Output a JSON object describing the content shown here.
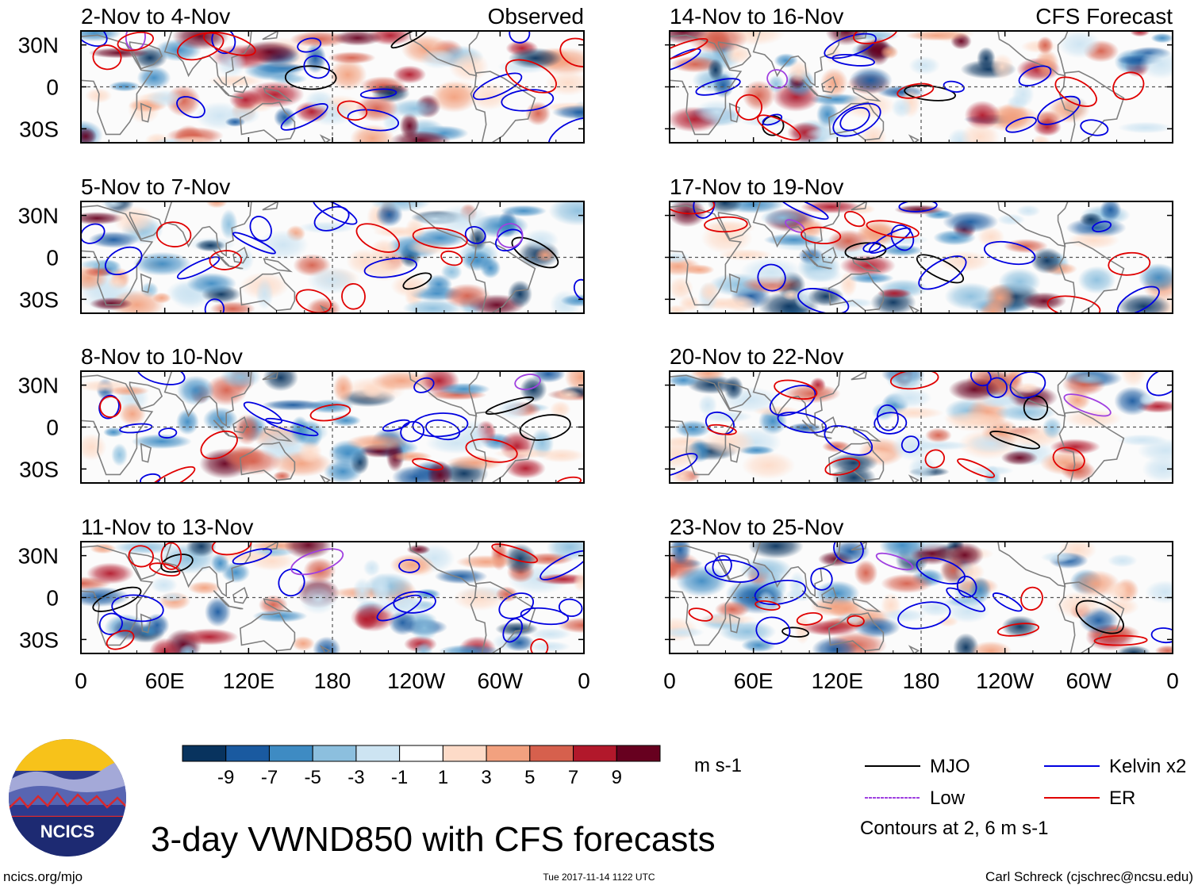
{
  "chart_data": [
    {
      "type": "heatmap",
      "title": "2-Nov to 4-Nov",
      "tag": "Observed",
      "source": "observed",
      "seed": 11
    },
    {
      "type": "heatmap",
      "title": "5-Nov to 7-Nov",
      "tag": "",
      "source": "observed",
      "seed": 23
    },
    {
      "type": "heatmap",
      "title": "8-Nov to 10-Nov",
      "tag": "",
      "source": "observed",
      "seed": 37
    },
    {
      "type": "heatmap",
      "title": "11-Nov to 13-Nov",
      "tag": "",
      "source": "observed",
      "seed": 41
    },
    {
      "type": "heatmap",
      "title": "14-Nov to 16-Nov",
      "tag": "CFS Forecast",
      "source": "forecast",
      "seed": 53
    },
    {
      "type": "heatmap",
      "title": "17-Nov to 19-Nov",
      "tag": "",
      "source": "forecast",
      "seed": 67
    },
    {
      "type": "heatmap",
      "title": "20-Nov to 22-Nov",
      "tag": "",
      "source": "forecast",
      "seed": 71
    },
    {
      "type": "heatmap",
      "title": "23-Nov to 25-Nov",
      "tag": "",
      "source": "forecast",
      "seed": 89
    }
  ],
  "axes": {
    "y_ticks": [
      {
        "label": "30N",
        "lat": 30
      },
      {
        "label": "0",
        "lat": 0
      },
      {
        "label": "30S",
        "lat": -30
      }
    ],
    "x_ticks": [
      {
        "label": "0",
        "lon": 0
      },
      {
        "label": "60E",
        "lon": 60
      },
      {
        "label": "120E",
        "lon": 120
      },
      {
        "label": "180",
        "lon": 180
      },
      {
        "label": "120W",
        "lon": 240
      },
      {
        "label": "60W",
        "lon": 300
      },
      {
        "label": "0",
        "lon": 360
      }
    ],
    "lat_range": [
      -40,
      40
    ],
    "lon_range": [
      0,
      360
    ]
  },
  "colorbar": {
    "colors": [
      "#08335e",
      "#1a5aa0",
      "#3e8bc3",
      "#8cbfde",
      "#cde4f2",
      "#ffffff",
      "#fddbc8",
      "#f2a17f",
      "#d6604d",
      "#b2182b",
      "#67001f"
    ],
    "tick_labels": [
      "-9",
      "-7",
      "-5",
      "-3",
      "-1",
      "1",
      "3",
      "5",
      "7",
      "9"
    ],
    "units": "m s-1"
  },
  "legend": [
    {
      "label": "MJO",
      "color": "#000000"
    },
    {
      "label": "Kelvin x2",
      "color": "#0000e0"
    },
    {
      "label": "Low",
      "color": "#a040e0"
    },
    {
      "label": "ER",
      "color": "#e00000"
    }
  ],
  "contour_note": "Contours at 2, 6 m s-1",
  "title": "3-day VWND850 with CFS forecasts",
  "logo_text": "NCICS",
  "footer": {
    "url": "ncics.org/mjo",
    "timestamp": "Tue 2017-11-14 1122 UTC",
    "credit": "Carl Schreck (cjschrec@ncsu.edu)"
  }
}
